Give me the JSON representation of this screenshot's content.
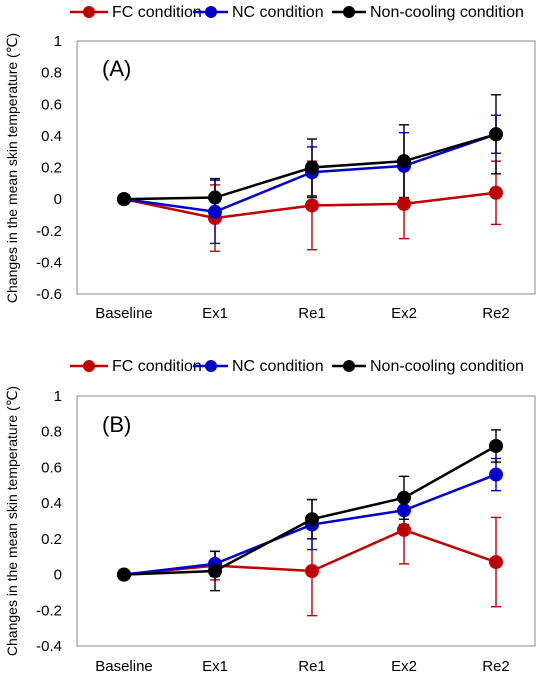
{
  "legend": {
    "fc": "FC condition",
    "nc": "NC condition",
    "noncool": "Non-cooling condition"
  },
  "colors": {
    "fc": "#c00000",
    "nc": "#0000cc",
    "noncool": "#000000"
  },
  "chart_data": [
    {
      "type": "line",
      "panel_label": "(A)",
      "ylabel": "Changes in the mean skin temperature (℃)",
      "xlabel": "",
      "categories": [
        "Baseline",
        "Ex1",
        "Re1",
        "Ex2",
        "Re2"
      ],
      "ylim": [
        -0.6,
        1.0
      ],
      "yticks": [
        1,
        0.8,
        0.6,
        0.4,
        0.2,
        0,
        -0.2,
        -0.4,
        -0.6
      ],
      "yticklabels": [
        "1",
        "0.8",
        "0.6",
        "0.4",
        "0.2",
        "0",
        "-0.2",
        "-0.4",
        "-0.6"
      ],
      "grid": false,
      "legend_position": "top",
      "series": [
        {
          "name": "FC condition",
          "key": "fc",
          "values": [
            0,
            -0.12,
            -0.04,
            -0.03,
            0.04
          ],
          "error": [
            0,
            0.21,
            0.28,
            0.22,
            0.2
          ]
        },
        {
          "name": "NC condition",
          "key": "nc",
          "values": [
            0,
            -0.08,
            0.17,
            0.21,
            0.41
          ],
          "error": [
            0,
            0.2,
            0.16,
            0.21,
            0.12
          ]
        },
        {
          "name": "Non-cooling condition",
          "key": "noncool",
          "values": [
            0,
            0.01,
            0.2,
            0.24,
            0.41
          ],
          "error": [
            0,
            0.12,
            0.18,
            0.23,
            0.25
          ]
        }
      ]
    },
    {
      "type": "line",
      "panel_label": "(B)",
      "ylabel": "Changes in the mean skin temperature (℃)",
      "xlabel": "",
      "categories": [
        "Baseline",
        "Ex1",
        "Re1",
        "Ex2",
        "Re2"
      ],
      "ylim": [
        -0.4,
        1.0
      ],
      "yticks": [
        1,
        0.8,
        0.6,
        0.4,
        0.2,
        0,
        -0.2,
        -0.4
      ],
      "yticklabels": [
        "1",
        "0.8",
        "0.6",
        "0.4",
        "0.2",
        "0",
        "-0.2",
        "-0.4"
      ],
      "grid": false,
      "legend_position": "top",
      "series": [
        {
          "name": "FC condition",
          "key": "fc",
          "values": [
            0,
            0.05,
            0.02,
            0.25,
            0.07
          ],
          "error": [
            0,
            0.08,
            0.25,
            0.19,
            0.25
          ]
        },
        {
          "name": "NC condition",
          "key": "nc",
          "values": [
            0,
            0.06,
            0.28,
            0.36,
            0.56
          ],
          "error": [
            0,
            0.07,
            0.14,
            0.08,
            0.09
          ]
        },
        {
          "name": "Non-cooling condition",
          "key": "noncool",
          "values": [
            0,
            0.02,
            0.31,
            0.43,
            0.72
          ],
          "error": [
            0,
            0.11,
            0.11,
            0.12,
            0.09
          ]
        }
      ]
    }
  ]
}
